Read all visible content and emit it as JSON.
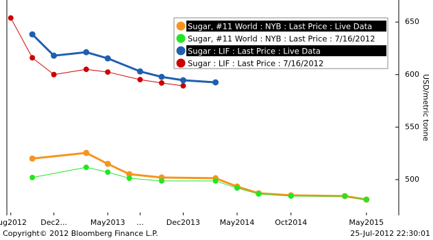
{
  "chart_data": {
    "type": "line",
    "y_label": "USD/metric tonne",
    "footer_left": "Copyright© 2012 Bloomberg Finance L.P.",
    "footer_right": "25-Jul-2012 22:30:01",
    "xlim": [
      "2012-07",
      "2015-08"
    ],
    "xticks": [
      {
        "value": "2012-08",
        "label": "ug2012"
      },
      {
        "value": "2012-12",
        "label": "Dec2..."
      },
      {
        "value": "2013-05",
        "label": "May2013"
      },
      {
        "value": "2013-08",
        "label": "..."
      },
      {
        "value": "2013-12",
        "label": "Dec2013"
      },
      {
        "value": "2014-05",
        "label": "May2014"
      },
      {
        "value": "2014-10",
        "label": "Oct2014"
      },
      {
        "value": "2015-05",
        "label": "May2015"
      }
    ],
    "ylim": [
      466,
      671
    ],
    "yticks": [
      500,
      550,
      600,
      650
    ],
    "series": [
      {
        "name": "Sugar, #11 World : NYB : Last Price : Live Data",
        "color": "#f7941d",
        "width": 3,
        "x": [
          "2012-10",
          "2013-03",
          "2013-05",
          "2013-07",
          "2013-10",
          "2014-03",
          "2014-05",
          "2014-07",
          "2014-10",
          "2015-03",
          "2015-05"
        ],
        "values": [
          520,
          525.4,
          515,
          505.2,
          502,
          501.3,
          493.4,
          487,
          485,
          484.3,
          481
        ]
      },
      {
        "name": "Sugar, #11 World : NYB : Last Price : 7/16/2012",
        "color": "#22e622",
        "width": 1,
        "x": [
          "2012-10",
          "2013-03",
          "2013-05",
          "2013-07",
          "2013-10",
          "2014-03",
          "2014-05",
          "2014-07",
          "2014-10",
          "2015-03",
          "2015-05"
        ],
        "values": [
          502,
          511.7,
          507.1,
          501.3,
          498.7,
          498.7,
          492,
          486.3,
          484.3,
          484.3,
          481
        ]
      },
      {
        "name": "Sugar : LIF : Last Price : Live Data",
        "color": "#1f5fb0",
        "width": 3,
        "x": [
          "2012-10",
          "2012-12",
          "2013-03",
          "2013-05",
          "2013-08",
          "2013-10",
          "2013-12",
          "2014-03"
        ],
        "values": [
          638.3,
          618,
          621.3,
          615.4,
          603,
          597.8,
          594.6,
          592.6
        ]
      },
      {
        "name": "Sugar : LIF : Last Price : 7/16/2012",
        "color": "#cc0000",
        "width": 1,
        "x": [
          "2012-08",
          "2012-10",
          "2012-12",
          "2013-03",
          "2013-05",
          "2013-08",
          "2013-10",
          "2013-12"
        ],
        "values": [
          653.9,
          616,
          600,
          605,
          602.4,
          595.2,
          592,
          589.3
        ]
      }
    ]
  }
}
